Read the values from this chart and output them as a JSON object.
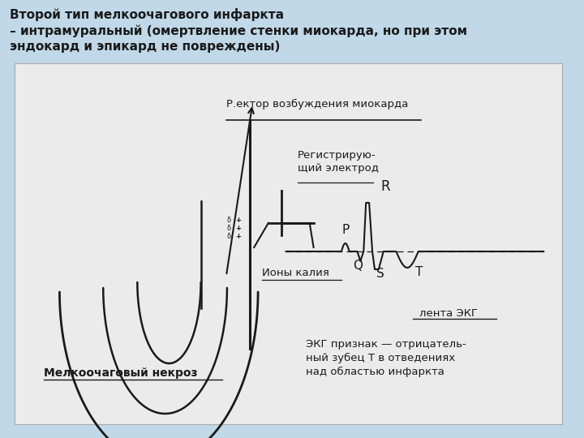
{
  "title_line1": "Второй тип мелкоочагового инфаркта",
  "title_line2": "– интрамуральный (омертвление стенки миокарда, но при этом",
  "title_line3": "эндокард и эпикард не повреждены)",
  "bg_color": "#c0d8e8",
  "diagram_bg": "#eeeeee",
  "lc": "#1a1a1a",
  "label_vector": "Р.ектор возбуждения миокарда",
  "label_electrode": "Регистрирую-\nщий электрод",
  "label_ions": "Ионы калия",
  "label_necrosis": "Мелкоочаговый некроз",
  "label_ecg_strip": "лента ЭКГ",
  "label_ecg_sign": "ЭКГ признак — отрицатель-\nный зубец Т в отведениях\nнад областью инфаркта",
  "label_P": "P",
  "label_Q": "Q",
  "label_R": "R",
  "label_S": "S",
  "label_T": "T"
}
